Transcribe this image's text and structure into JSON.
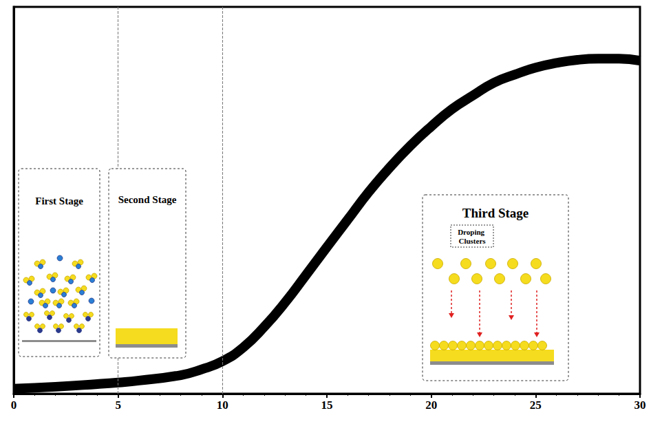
{
  "chart_data": {
    "type": "line",
    "x": [
      0,
      2,
      4,
      5,
      6,
      8,
      9,
      10,
      11,
      12,
      13,
      14,
      15,
      16,
      17,
      18,
      19,
      20,
      21,
      22,
      23,
      24,
      25,
      26,
      27,
      28,
      29,
      30
    ],
    "values": [
      1.3,
      1.8,
      2.5,
      2.9,
      3.4,
      4.8,
      6.3,
      8.4,
      12.0,
      17.3,
      23.6,
      30.7,
      37.9,
      45.0,
      52.1,
      58.4,
      64.1,
      69.1,
      73.6,
      77.1,
      80.4,
      82.5,
      84.3,
      85.5,
      86.3,
      86.6,
      86.6,
      86.1
    ],
    "color": "#000000",
    "xlim": [
      0,
      30
    ],
    "xticks": [
      0,
      5,
      10,
      15,
      20,
      25,
      30
    ],
    "ylim": [
      0,
      100
    ],
    "tick_labels": "x",
    "grid": false,
    "vlines": [
      5,
      10
    ],
    "stage_labels": [
      "First Stage",
      "Second Stage",
      "Third Stage"
    ],
    "cluster_label": "Droping Clusters"
  }
}
